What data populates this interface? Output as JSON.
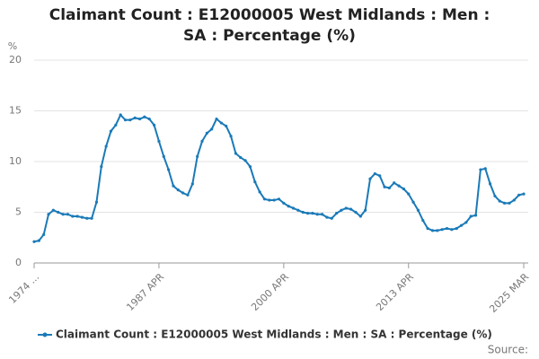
{
  "chart_data": {
    "type": "line",
    "title": "Claimant Count : E12000005 West Midlands : Men : SA : Percentage (%)",
    "y_label": "%",
    "source": "Source:",
    "categories": [
      "1974 ...",
      null,
      null,
      null,
      null,
      null,
      null,
      null,
      null,
      null,
      null,
      null,
      null,
      null,
      null,
      null,
      null,
      null,
      null,
      null,
      null,
      null,
      null,
      null,
      null,
      null,
      "1987 APR",
      null,
      null,
      null,
      null,
      null,
      null,
      null,
      null,
      null,
      null,
      null,
      null,
      null,
      null,
      null,
      null,
      null,
      null,
      null,
      null,
      null,
      null,
      null,
      null,
      null,
      "2000 APR",
      null,
      null,
      null,
      null,
      null,
      null,
      null,
      null,
      null,
      null,
      null,
      null,
      null,
      null,
      null,
      null,
      null,
      null,
      null,
      null,
      null,
      null,
      null,
      null,
      null,
      "2013 APR",
      null,
      null,
      null,
      null,
      null,
      null,
      null,
      null,
      null,
      null,
      null,
      null,
      null,
      null,
      null,
      null,
      null,
      null,
      null,
      null,
      null,
      null,
      null,
      "2025 MAR"
    ],
    "series": [
      {
        "name": "Claimant Count : E12000005 West Midlands : Men : SA : Percentage (%)",
        "color": "#1a7ab8",
        "values": [
          2.1,
          2.2,
          2.8,
          4.8,
          5.2,
          5.0,
          4.8,
          4.8,
          4.6,
          4.6,
          4.5,
          4.4,
          4.4,
          6.0,
          9.5,
          11.5,
          13.0,
          13.6,
          14.6,
          14.1,
          14.1,
          14.3,
          14.2,
          14.4,
          14.2,
          13.6,
          12.0,
          10.5,
          9.2,
          7.6,
          7.2,
          6.9,
          6.7,
          7.8,
          10.5,
          12.0,
          12.8,
          13.2,
          14.2,
          13.8,
          13.5,
          12.5,
          10.8,
          10.4,
          10.1,
          9.5,
          8.0,
          7.0,
          6.3,
          6.2,
          6.2,
          6.3,
          5.9,
          5.6,
          5.4,
          5.2,
          5.0,
          4.9,
          4.9,
          4.8,
          4.8,
          4.5,
          4.4,
          4.9,
          5.2,
          5.4,
          5.3,
          5.0,
          4.6,
          5.2,
          8.3,
          8.8,
          8.6,
          7.5,
          7.4,
          7.9,
          7.6,
          7.3,
          6.8,
          6.0,
          5.2,
          4.2,
          3.4,
          3.2,
          3.2,
          3.3,
          3.4,
          3.3,
          3.4,
          3.7,
          4.0,
          4.6,
          4.7,
          9.2,
          9.3,
          7.8,
          6.6,
          6.1,
          5.9,
          5.9,
          6.2,
          6.7,
          6.8
        ]
      }
    ],
    "ylim": [
      0,
      20
    ],
    "yticks": [
      0,
      5,
      10,
      15,
      20
    ],
    "grid": true,
    "legend": "bottom"
  }
}
